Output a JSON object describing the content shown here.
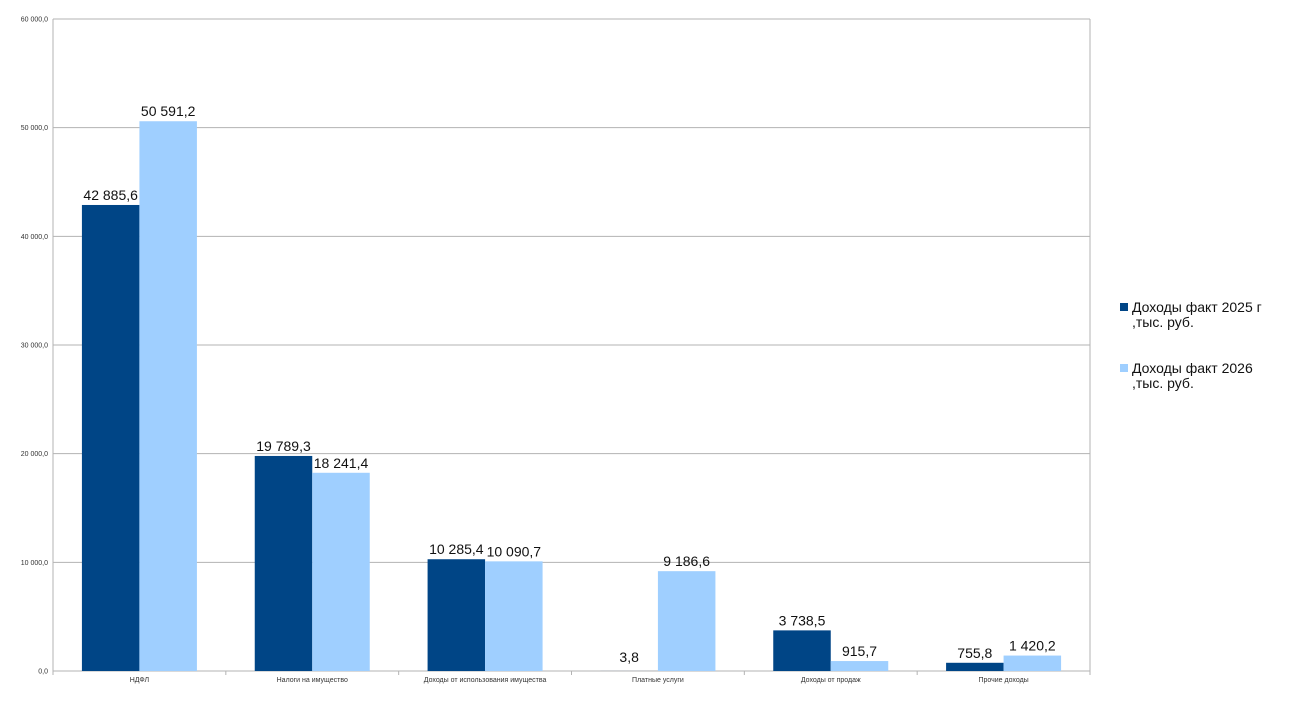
{
  "chart_data": {
    "type": "bar",
    "categories": [
      "НДФЛ",
      "Налоги на имущество",
      "Доходы от использования имущества",
      "Платные услуги",
      "Доходы от продаж",
      "Прочие доходы"
    ],
    "series": [
      {
        "name": "Доходы факт 2025 г ,тыс. руб.",
        "color": "#004586",
        "values": [
          42885.6,
          19789.3,
          10285.4,
          3.8,
          3738.5,
          755.8
        ],
        "labels": [
          "42 885,6",
          "19 789,3",
          "10 285,4",
          "3,8",
          "3 738,5",
          "755,8"
        ]
      },
      {
        "name": "Доходы факт 2026 ,тыс. руб.",
        "color": "#9fcfff",
        "values": [
          50591.2,
          18241.4,
          10090.7,
          9186.6,
          915.7,
          1420.2
        ],
        "labels": [
          "50 591,2",
          "18 241,4",
          "10 090,7",
          "9 186,6",
          "915,7",
          "1 420,2"
        ]
      }
    ],
    "y_ticks": [
      "0,0",
      "10 000,0",
      "20 000,0",
      "30 000,0",
      "40 000,0",
      "50 000,0",
      "60 000,0"
    ],
    "ylim": [
      0,
      60000
    ],
    "y_step": 10000,
    "grid": true,
    "legend_position": "right"
  }
}
